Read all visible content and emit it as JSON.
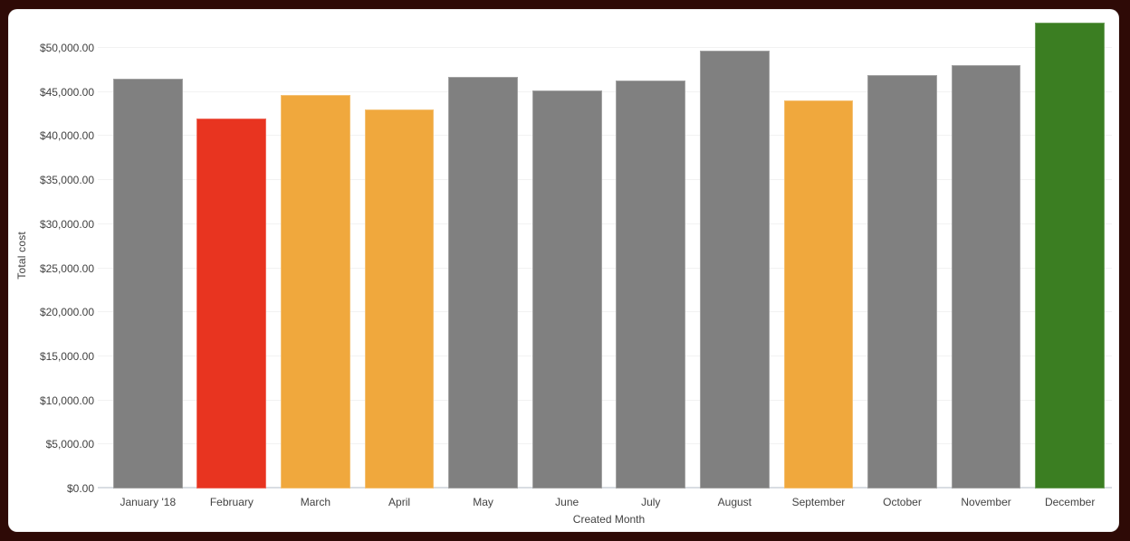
{
  "chart_data": {
    "type": "bar",
    "title": "",
    "xlabel": "Created Month",
    "ylabel": "Total cost",
    "categories": [
      "January '18",
      "February",
      "March",
      "April",
      "May",
      "June",
      "July",
      "August",
      "September",
      "October",
      "November",
      "December"
    ],
    "values": [
      46550,
      42000,
      44700,
      43050,
      46750,
      45200,
      46350,
      49700,
      44050,
      46950,
      48000,
      52900
    ],
    "bar_colors": [
      "#808080",
      "#e83420",
      "#f0a83d",
      "#f0a83d",
      "#808080",
      "#808080",
      "#808080",
      "#808080",
      "#f0a83d",
      "#808080",
      "#808080",
      "#3b7e22"
    ],
    "ylim": [
      0,
      50000
    ],
    "yticks": [
      0,
      5000,
      10000,
      15000,
      20000,
      25000,
      30000,
      35000,
      40000,
      45000,
      50000
    ],
    "ytick_labels": [
      "$0.00",
      "$5,000.00",
      "$10,000.00",
      "$15,000.00",
      "$20,000.00",
      "$25,000.00",
      "$30,000.00",
      "$35,000.00",
      "$40,000.00",
      "$45,000.00",
      "$50,000.00"
    ],
    "legend": "none",
    "grid": true
  },
  "colors": {
    "background": "#2e0a06",
    "card": "#ffffff",
    "gridline": "#f2f2f2",
    "axis_line": "#d9dde2",
    "text": "#424242",
    "bar_gray": "#808080",
    "bar_red": "#e83420",
    "bar_orange": "#f0a83d",
    "bar_green": "#3b7e22"
  }
}
